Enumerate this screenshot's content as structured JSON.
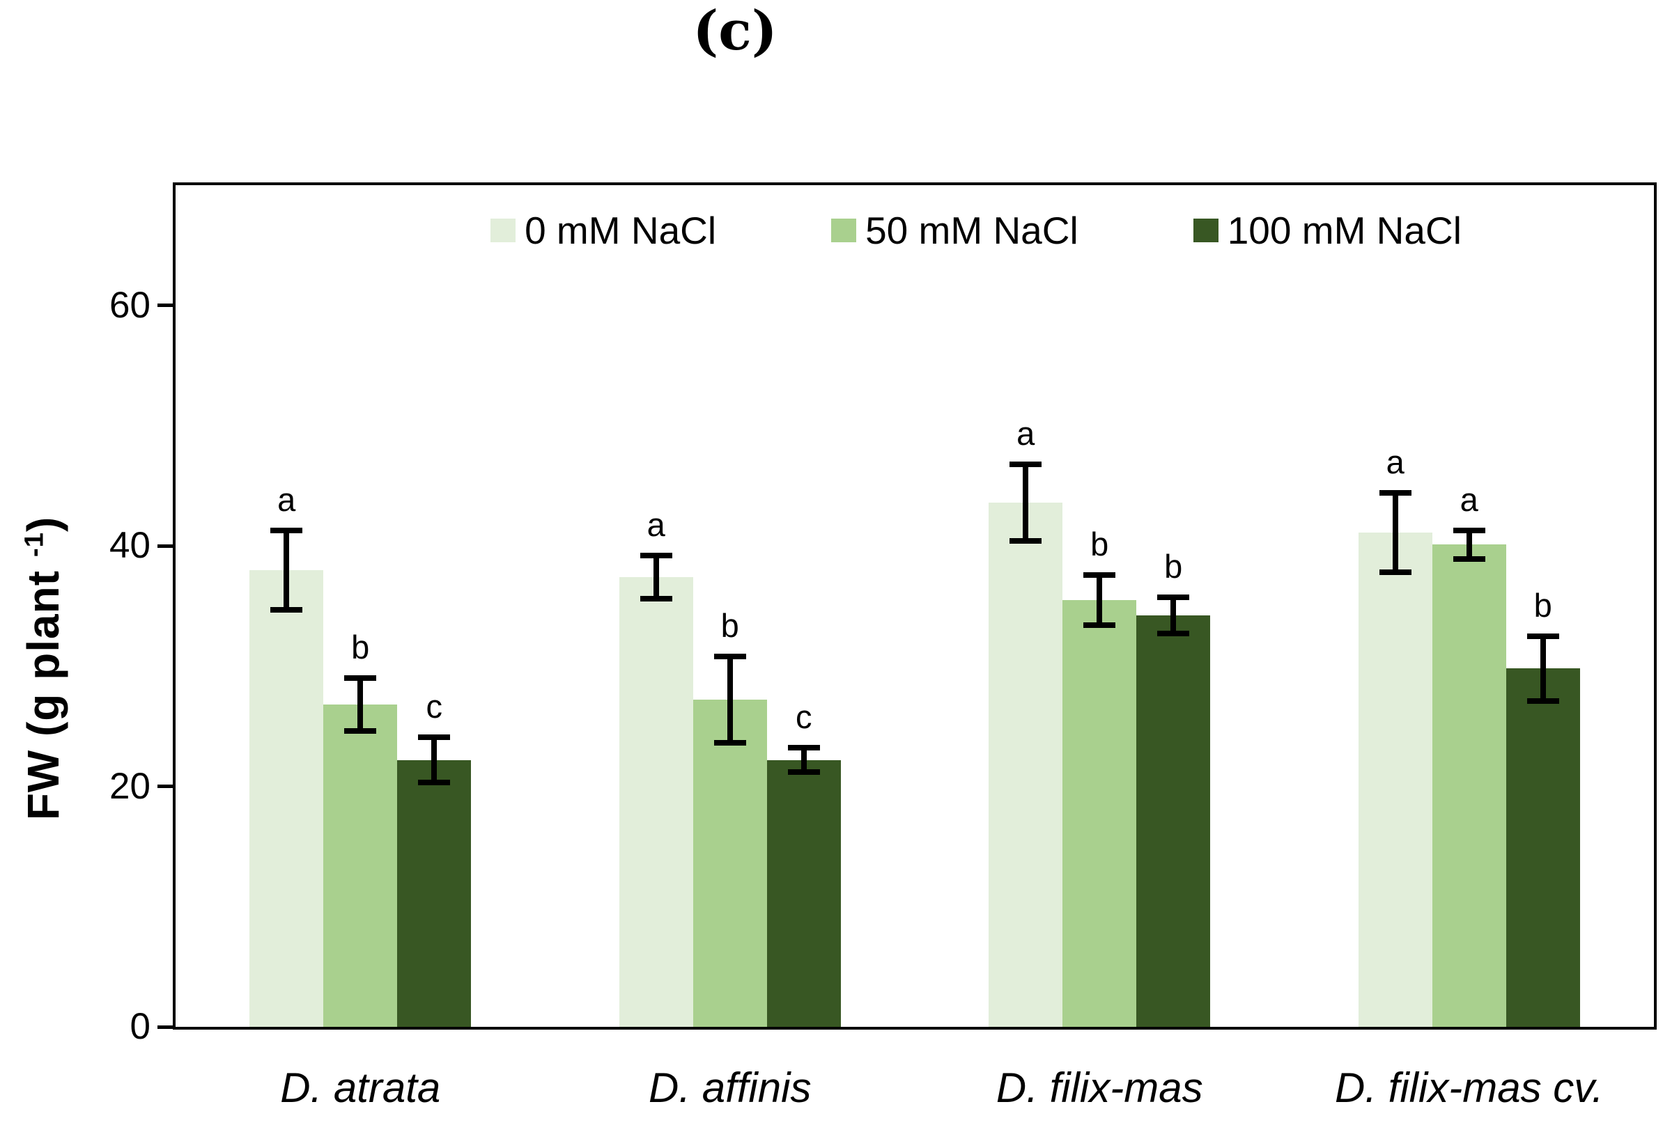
{
  "chart_data": {
    "type": "bar",
    "title": "(c)",
    "ylabel_text": "FW (g plant -1)",
    "ylabel_parts": {
      "prefix": "FW (g plant ",
      "superscript": "-1",
      "suffix": ")"
    },
    "xlabel": "",
    "ylim": [
      0,
      70
    ],
    "yticks": [
      0,
      20,
      40,
      60
    ],
    "grid": false,
    "legend_position": "top-center inside plot, horizontal",
    "axis_color": "#000000",
    "error_bar_color": "#000000",
    "categories": [
      "D. atrata",
      "D. affinis",
      "D. filix-mas",
      "D. filix-mas cv."
    ],
    "series": [
      {
        "name": "0 mM NaCl",
        "color": "#e2eeda",
        "values": [
          38.0,
          37.4,
          43.6,
          41.1
        ],
        "errors": [
          3.3,
          1.8,
          3.2,
          3.3
        ],
        "sig_letters": [
          "a",
          "a",
          "a",
          "a"
        ]
      },
      {
        "name": "50 mM NaCl",
        "color": "#a9d08e",
        "values": [
          26.8,
          27.2,
          35.5,
          40.1
        ],
        "errors": [
          2.2,
          3.6,
          2.1,
          1.2
        ],
        "sig_letters": [
          "b",
          "b",
          "b",
          "a"
        ]
      },
      {
        "name": "100 mM NaCl",
        "color": "#385723",
        "values": [
          22.2,
          22.2,
          34.2,
          29.8
        ],
        "errors": [
          1.9,
          1.0,
          1.5,
          2.7
        ],
        "sig_letters": [
          "c",
          "c",
          "b",
          "b"
        ]
      }
    ]
  }
}
